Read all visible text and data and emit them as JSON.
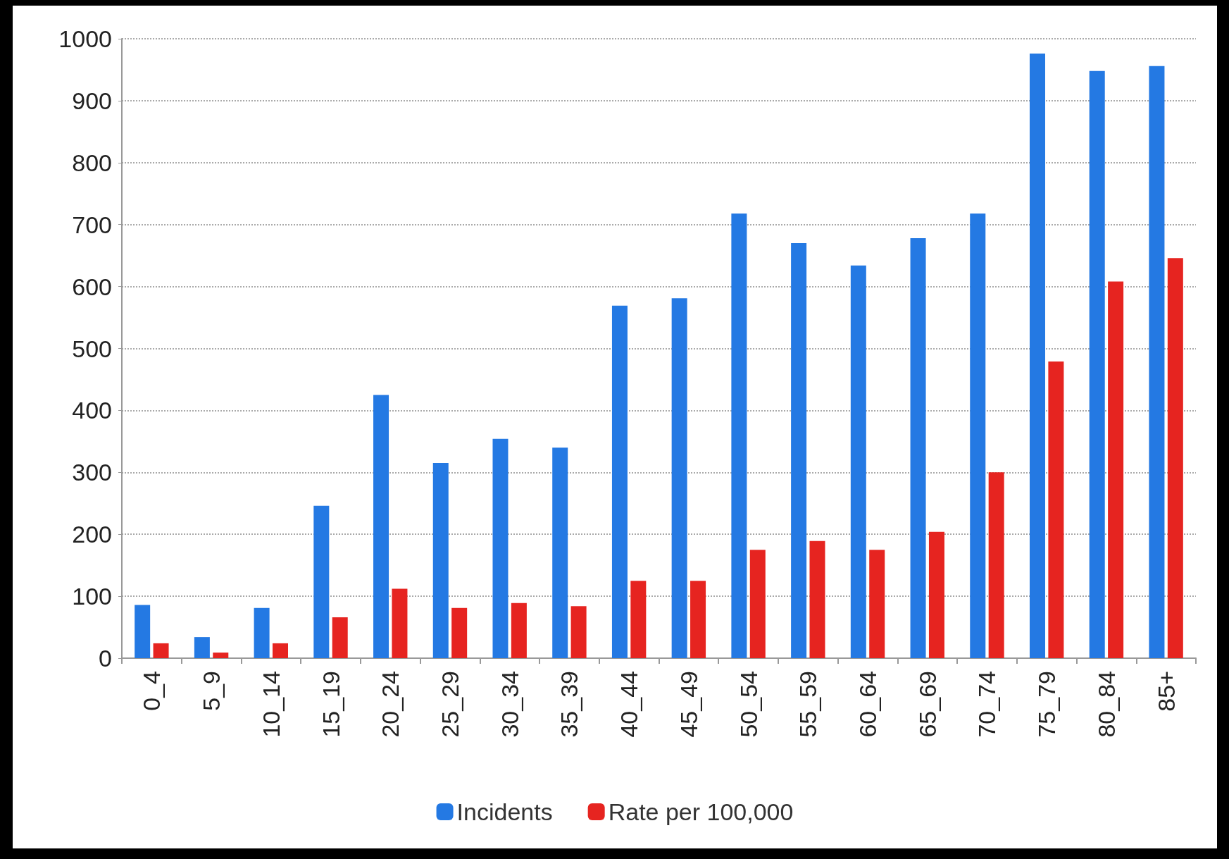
{
  "chart_data": {
    "type": "bar",
    "categories": [
      "0_4",
      "5_9",
      "10_14",
      "15_19",
      "20_24",
      "25_29",
      "30_34",
      "35_39",
      "40_44",
      "45_49",
      "50_54",
      "55_59",
      "60_64",
      "65_69",
      "70_74",
      "75_79",
      "80_84",
      "85+"
    ],
    "series": [
      {
        "name": "Incidents",
        "color": "#2479e3",
        "values": [
          86,
          34,
          81,
          246,
          425,
          315,
          354,
          340,
          569,
          581,
          718,
          670,
          634,
          678,
          718,
          976,
          948,
          956
        ]
      },
      {
        "name": "Rate per 100,000",
        "color": "#e62420",
        "values": [
          24,
          9,
          24,
          66,
          112,
          81,
          89,
          84,
          125,
          125,
          175,
          189,
          175,
          204,
          300,
          479,
          608,
          646
        ]
      }
    ],
    "ylim": [
      0,
      1000
    ],
    "yticks": [
      0,
      100,
      200,
      300,
      400,
      500,
      600,
      700,
      800,
      900,
      1000
    ],
    "grid": "y",
    "legend": "bottom"
  }
}
